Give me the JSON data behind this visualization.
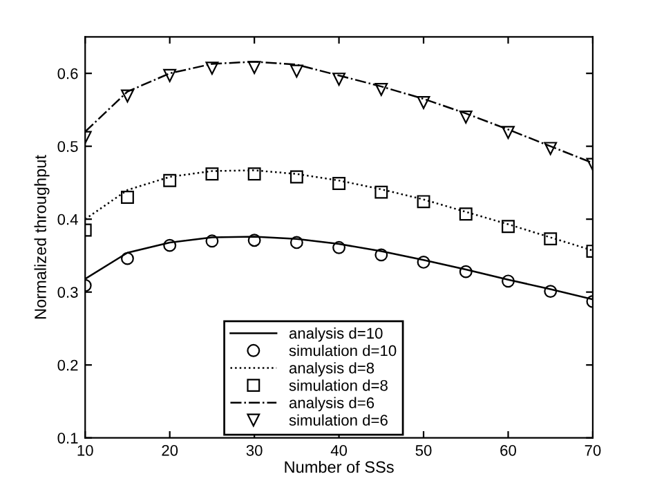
{
  "chart_data": {
    "type": "line",
    "xlabel": "Number of SSs",
    "ylabel": "Normalized throughput",
    "x": [
      10,
      15,
      20,
      25,
      30,
      35,
      40,
      45,
      50,
      55,
      60,
      65,
      70
    ],
    "series": [
      {
        "name": "analysis d=10",
        "type": "line",
        "line_style": "solid",
        "color": "#000000",
        "values": [
          0.318,
          0.354,
          0.368,
          0.375,
          0.376,
          0.373,
          0.366,
          0.356,
          0.344,
          0.331,
          0.317,
          0.304,
          0.29
        ]
      },
      {
        "name": "simulation d=10",
        "type": "scatter",
        "marker": "circle",
        "color": "#000000",
        "values": [
          0.309,
          0.346,
          0.364,
          0.37,
          0.371,
          0.368,
          0.361,
          0.351,
          0.341,
          0.328,
          0.315,
          0.301,
          0.287
        ]
      },
      {
        "name": "analysis d=8",
        "type": "line",
        "line_style": "dotted",
        "color": "#000000",
        "values": [
          0.4,
          0.44,
          0.458,
          0.466,
          0.467,
          0.462,
          0.453,
          0.441,
          0.427,
          0.41,
          0.393,
          0.375,
          0.357
        ]
      },
      {
        "name": "simulation d=8",
        "type": "scatter",
        "marker": "square",
        "color": "#000000",
        "values": [
          0.385,
          0.43,
          0.453,
          0.462,
          0.462,
          0.458,
          0.449,
          0.437,
          0.424,
          0.407,
          0.39,
          0.373,
          0.356
        ]
      },
      {
        "name": "analysis d=6",
        "type": "line",
        "line_style": "dashdot",
        "color": "#000000",
        "values": [
          0.52,
          0.575,
          0.6,
          0.613,
          0.616,
          0.612,
          0.597,
          0.582,
          0.565,
          0.545,
          0.523,
          0.5,
          0.477
        ]
      },
      {
        "name": "simulation d=6",
        "type": "scatter",
        "marker": "triangle",
        "color": "#000000",
        "values": [
          0.512,
          0.569,
          0.597,
          0.607,
          0.608,
          0.603,
          0.592,
          0.578,
          0.56,
          0.54,
          0.519,
          0.497,
          0.475
        ]
      }
    ],
    "xlim": [
      10,
      70
    ],
    "xticks": [
      10,
      20,
      30,
      40,
      50,
      60,
      70
    ],
    "ylim": [
      0.1,
      0.65
    ],
    "yticks": [
      0.1,
      0.2,
      0.3,
      0.4,
      0.5,
      0.6
    ],
    "grid": false,
    "legend": "bottom"
  }
}
